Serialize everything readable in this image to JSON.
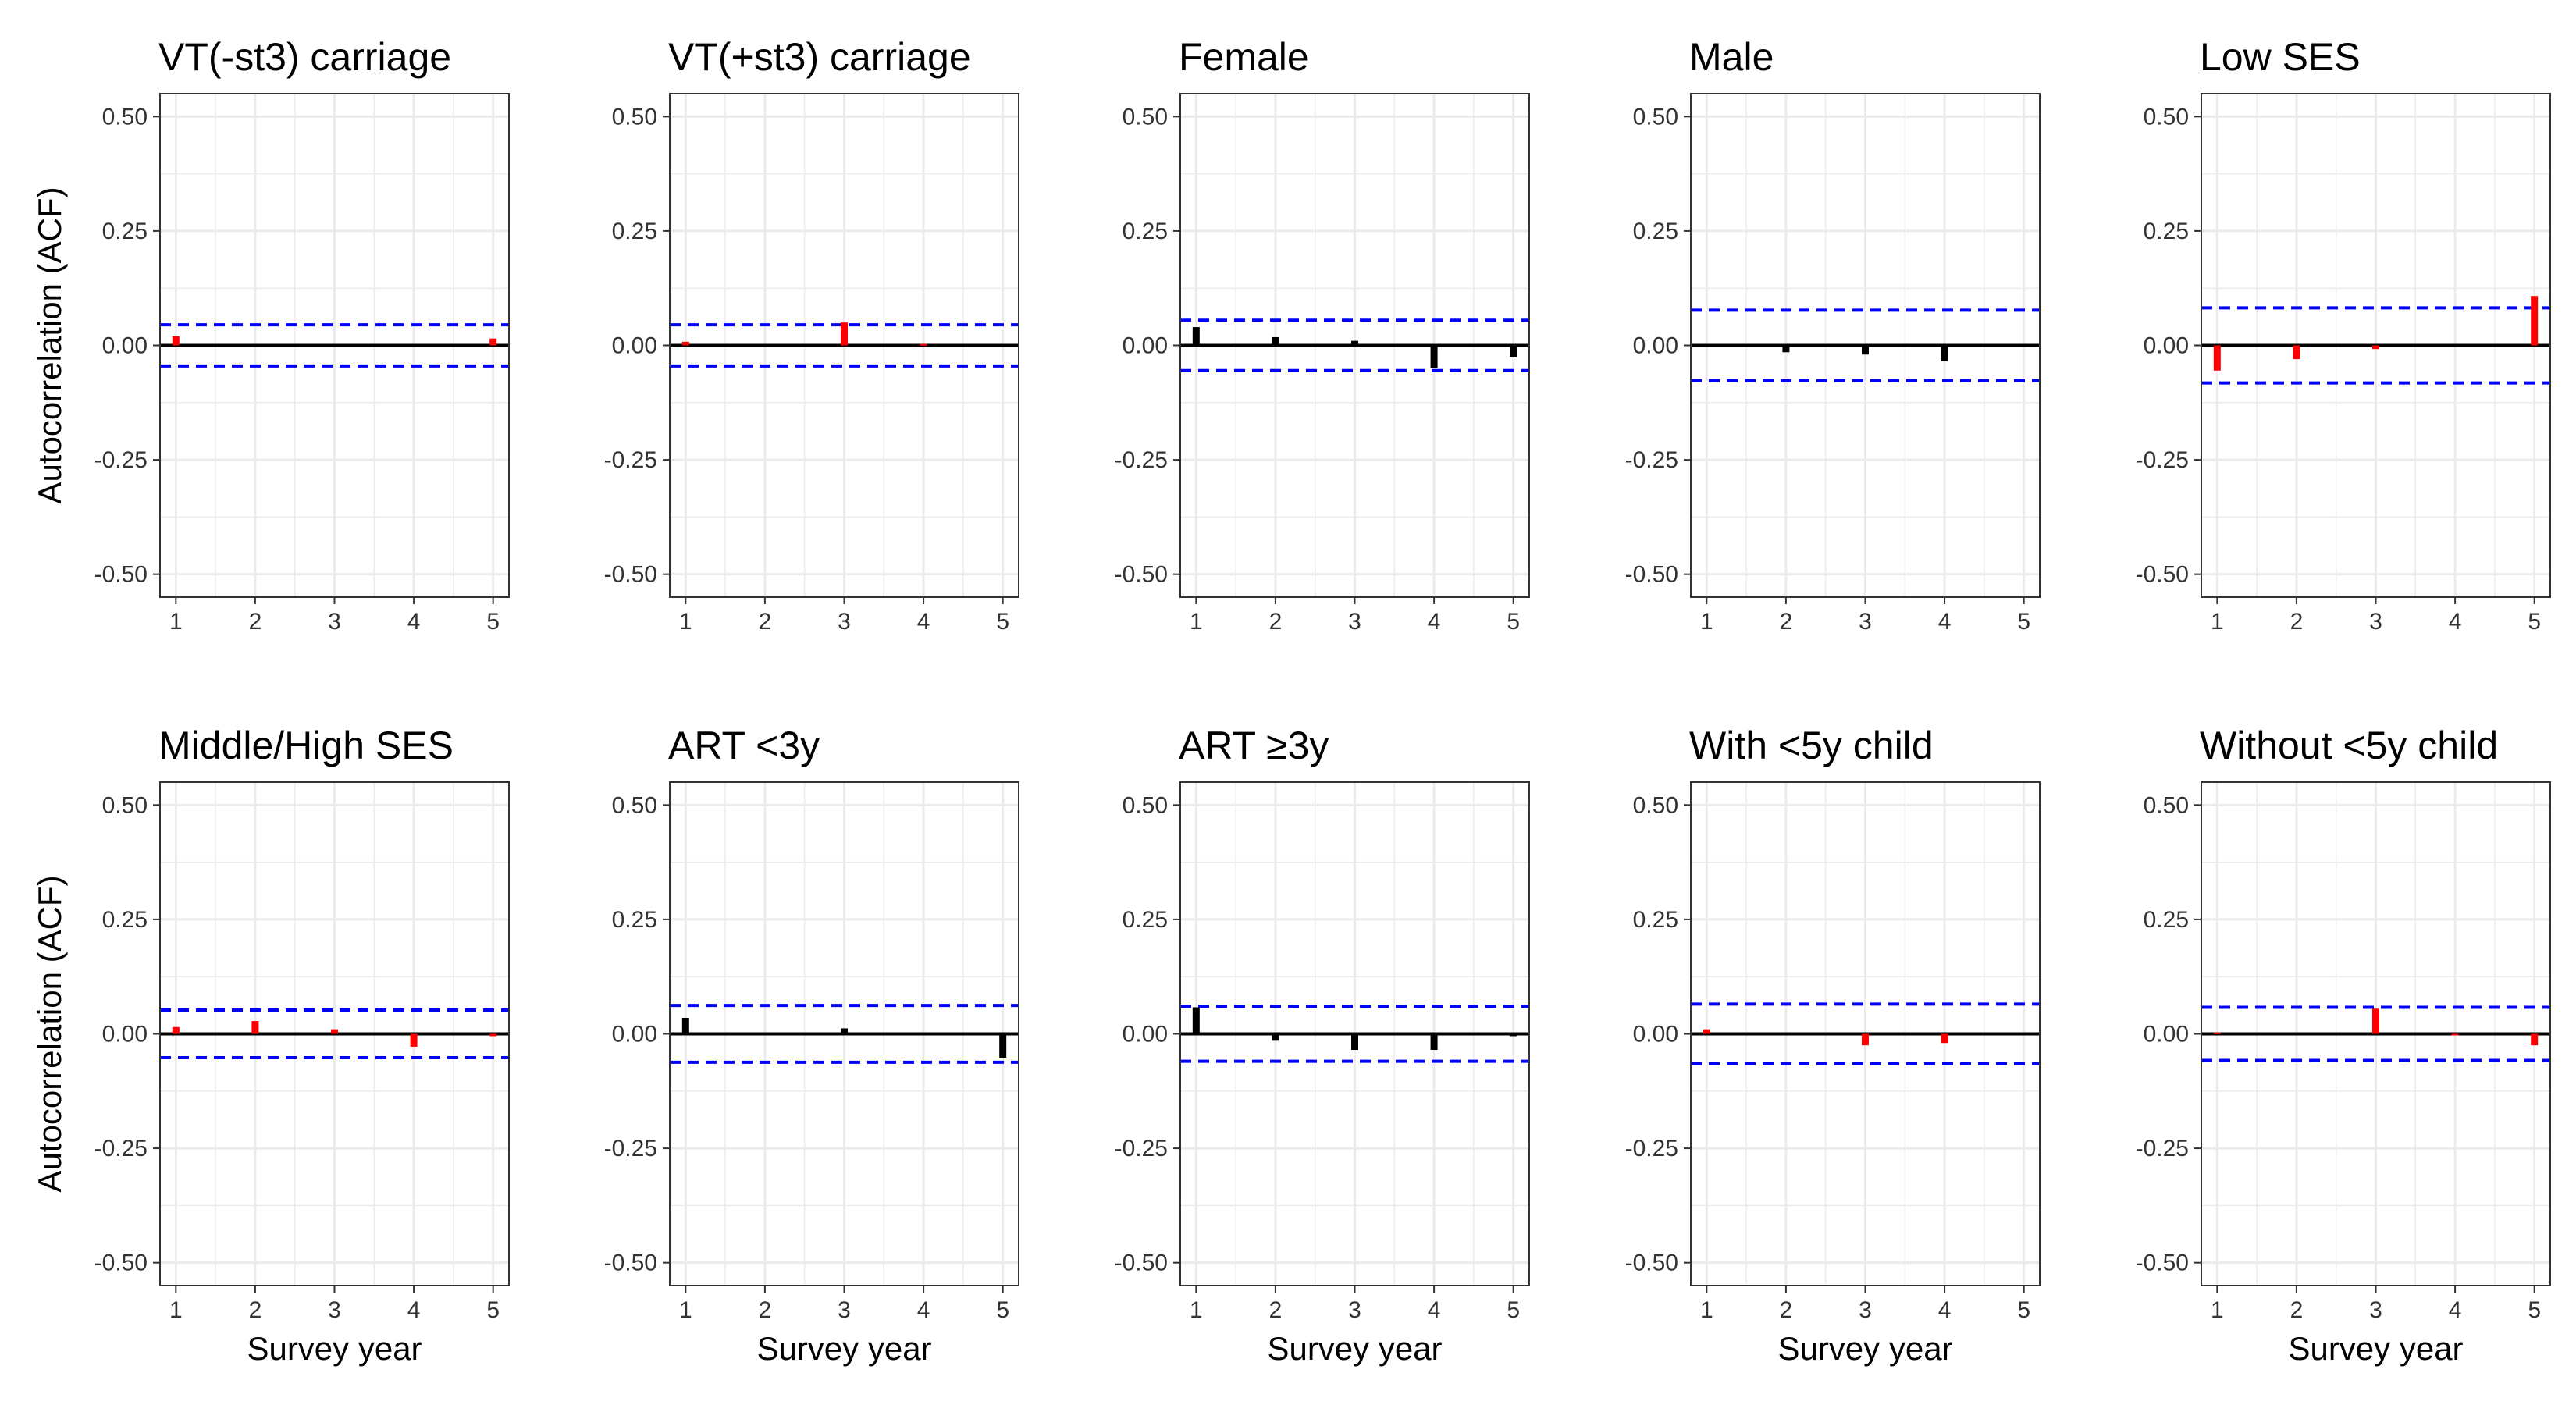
{
  "colors": {
    "positive_bar": "#ff0000",
    "negative_bar": "#000000",
    "ci_line": "#0000ff",
    "zero_line": "#000000",
    "grid": "#ebebeb",
    "panel_border": "#333333"
  },
  "chart_data": [
    {
      "type": "bar",
      "title": "VT(-st3) carriage",
      "xlabel": "",
      "ylabel": "Autocorrelation (ACF)",
      "x": [
        1,
        2,
        3,
        4,
        5
      ],
      "values": [
        0.02,
        0,
        0,
        0,
        0.015
      ],
      "bar_color": "red",
      "ci": 0.045,
      "ylim": [
        -0.55,
        0.55
      ],
      "yticks": [
        "0.50",
        "0.25",
        "0.00",
        "-0.25",
        "-0.50"
      ],
      "xticks": [
        "1",
        "2",
        "3",
        "4",
        "5"
      ]
    },
    {
      "type": "bar",
      "title": "VT(+st3) carriage",
      "xlabel": "",
      "ylabel": "",
      "x": [
        1,
        2,
        3,
        4,
        5
      ],
      "values": [
        0.008,
        0,
        0.05,
        0.003,
        0
      ],
      "bar_color": "red",
      "ci": 0.045,
      "ylim": [
        -0.55,
        0.55
      ],
      "yticks": [
        "0.50",
        "0.25",
        "0.00",
        "-0.25",
        "-0.50"
      ],
      "xticks": [
        "1",
        "2",
        "3",
        "4",
        "5"
      ]
    },
    {
      "type": "bar",
      "title": "Female",
      "xlabel": "",
      "ylabel": "",
      "x": [
        1,
        2,
        3,
        4,
        5
      ],
      "values": [
        0.04,
        0.018,
        0.01,
        -0.05,
        -0.025
      ],
      "bar_color": "black",
      "ci": 0.055,
      "ylim": [
        -0.55,
        0.55
      ],
      "yticks": [
        "0.50",
        "0.25",
        "0.00",
        "-0.25",
        "-0.50"
      ],
      "xticks": [
        "1",
        "2",
        "3",
        "4",
        "5"
      ]
    },
    {
      "type": "bar",
      "title": "Male",
      "xlabel": "",
      "ylabel": "",
      "x": [
        1,
        2,
        3,
        4,
        5
      ],
      "values": [
        0,
        -0.015,
        -0.02,
        -0.035,
        -0.003
      ],
      "bar_color": "black",
      "ci": 0.077,
      "ylim": [
        -0.55,
        0.55
      ],
      "yticks": [
        "0.50",
        "0.25",
        "0.00",
        "-0.25",
        "-0.50"
      ],
      "xticks": [
        "1",
        "2",
        "3",
        "4",
        "5"
      ]
    },
    {
      "type": "bar",
      "title": "Low SES",
      "xlabel": "",
      "ylabel": "",
      "x": [
        1,
        2,
        3,
        4,
        5
      ],
      "values": [
        -0.055,
        -0.03,
        -0.008,
        0,
        0.108
      ],
      "bar_color": "red",
      "ci": 0.082,
      "ylim": [
        -0.55,
        0.55
      ],
      "yticks": [
        "0.50",
        "0.25",
        "0.00",
        "-0.25",
        "-0.50"
      ],
      "xticks": [
        "1",
        "2",
        "3",
        "4",
        "5"
      ]
    },
    {
      "type": "bar",
      "title": "Middle/High SES",
      "xlabel": "Survey year",
      "ylabel": "Autocorrelation (ACF)",
      "x": [
        1,
        2,
        3,
        4,
        5
      ],
      "values": [
        0.015,
        0.028,
        0.01,
        -0.028,
        -0.005
      ],
      "bar_color": "red",
      "ci": 0.052,
      "ylim": [
        -0.55,
        0.55
      ],
      "yticks": [
        "0.50",
        "0.25",
        "0.00",
        "-0.25",
        "-0.50"
      ],
      "xticks": [
        "1",
        "2",
        "3",
        "4",
        "5"
      ]
    },
    {
      "type": "bar",
      "title": "ART <3y",
      "xlabel": "Survey year",
      "ylabel": "",
      "x": [
        1,
        2,
        3,
        4,
        5
      ],
      "values": [
        0.035,
        0,
        0.012,
        0,
        -0.052
      ],
      "bar_color": "black",
      "ci": 0.062,
      "ylim": [
        -0.55,
        0.55
      ],
      "yticks": [
        "0.50",
        "0.25",
        "0.00",
        "-0.25",
        "-0.50"
      ],
      "xticks": [
        "1",
        "2",
        "3",
        "4",
        "5"
      ]
    },
    {
      "type": "bar",
      "title": "ART ≥3y",
      "xlabel": "Survey year",
      "ylabel": "",
      "x": [
        1,
        2,
        3,
        4,
        5
      ],
      "values": [
        0.058,
        -0.015,
        -0.035,
        -0.035,
        -0.005
      ],
      "bar_color": "black",
      "ci": 0.06,
      "ylim": [
        -0.55,
        0.55
      ],
      "yticks": [
        "0.50",
        "0.25",
        "0.00",
        "-0.25",
        "-0.50"
      ],
      "xticks": [
        "1",
        "2",
        "3",
        "4",
        "5"
      ]
    },
    {
      "type": "bar",
      "title": "With <5y child",
      "xlabel": "Survey year",
      "ylabel": "",
      "x": [
        1,
        2,
        3,
        4,
        5
      ],
      "values": [
        0.01,
        0,
        -0.025,
        -0.02,
        0
      ],
      "bar_color": "red",
      "ci": 0.065,
      "ylim": [
        -0.55,
        0.55
      ],
      "yticks": [
        "0.50",
        "0.25",
        "0.00",
        "-0.25",
        "-0.50"
      ],
      "xticks": [
        "1",
        "2",
        "3",
        "4",
        "5"
      ]
    },
    {
      "type": "bar",
      "title": "Without <5y child",
      "xlabel": "Survey year",
      "ylabel": "",
      "x": [
        1,
        2,
        3,
        4,
        5
      ],
      "values": [
        0.003,
        0,
        0.055,
        -0.003,
        -0.025
      ],
      "bar_color": "red",
      "ci": 0.058,
      "ylim": [
        -0.55,
        0.55
      ],
      "yticks": [
        "0.50",
        "0.25",
        "0.00",
        "-0.25",
        "-0.50"
      ],
      "xticks": [
        "1",
        "2",
        "3",
        "4",
        "5"
      ]
    }
  ]
}
